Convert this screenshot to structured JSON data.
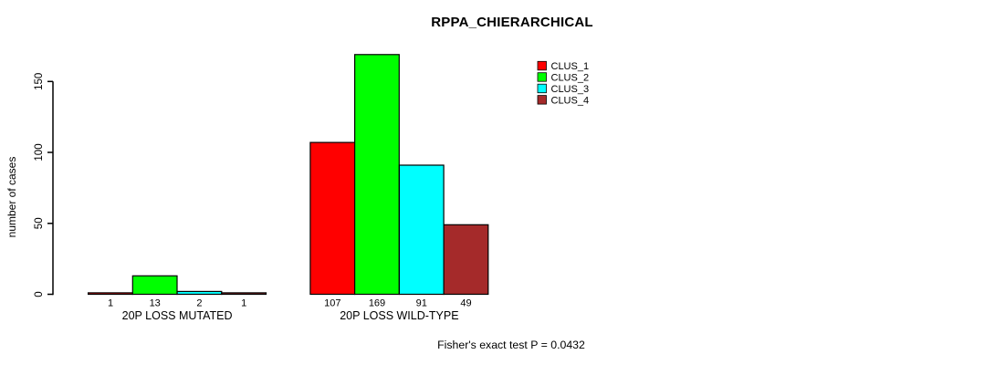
{
  "chart_data": {
    "type": "bar",
    "title": "RPPA_CHIERARCHICAL",
    "ylabel": "number of cases",
    "xlabel": "",
    "ylim": [
      0,
      169
    ],
    "yticks": [
      0,
      50,
      100,
      150
    ],
    "grid": false,
    "legend_position": "top-right",
    "bar_value_labels_shown": true,
    "categories": [
      "20P LOSS MUTATED",
      "20P LOSS WILD-TYPE"
    ],
    "series": [
      {
        "name": "CLUS_1",
        "color": "#FF0000",
        "values": [
          1,
          107
        ]
      },
      {
        "name": "CLUS_2",
        "color": "#00FF00",
        "values": [
          13,
          169
        ]
      },
      {
        "name": "CLUS_3",
        "color": "#00FFFF",
        "values": [
          2,
          91
        ]
      },
      {
        "name": "CLUS_4",
        "color": "#A52A2A",
        "values": [
          1,
          49
        ]
      }
    ],
    "footnote": "Fisher's exact test P = 0.0432",
    "colors": {
      "axis": "#000000",
      "bar_border": "#000000",
      "text": "#000000",
      "background": "#FFFFFF"
    }
  }
}
